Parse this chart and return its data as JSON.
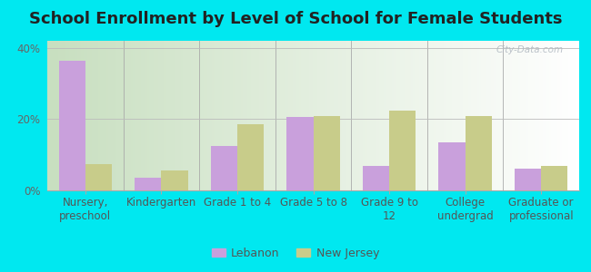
{
  "title": "School Enrollment by Level of School for Female Students",
  "categories": [
    "Nursery,\npreschool",
    "Kindergarten",
    "Grade 1 to 4",
    "Grade 5 to 8",
    "Grade 9 to\n12",
    "College\nundergrad",
    "Graduate or\nprofessional"
  ],
  "lebanon": [
    36.5,
    3.5,
    12.5,
    20.5,
    7.0,
    13.5,
    6.0
  ],
  "new_jersey": [
    7.5,
    5.5,
    18.5,
    21.0,
    22.5,
    21.0,
    7.0
  ],
  "lebanon_color": "#c9a0dc",
  "new_jersey_color": "#c8cc8a",
  "background_outer": "#00e8f0",
  "background_inner": "#e8f0d8",
  "ylim": [
    0,
    42
  ],
  "yticks": [
    0,
    20,
    40
  ],
  "ytick_labels": [
    "0%",
    "20%",
    "40%"
  ],
  "watermark": "City-Data.com",
  "legend_lebanon": "Lebanon",
  "legend_new_jersey": "New Jersey",
  "title_fontsize": 13,
  "tick_fontsize": 8.5,
  "bar_width": 0.35
}
